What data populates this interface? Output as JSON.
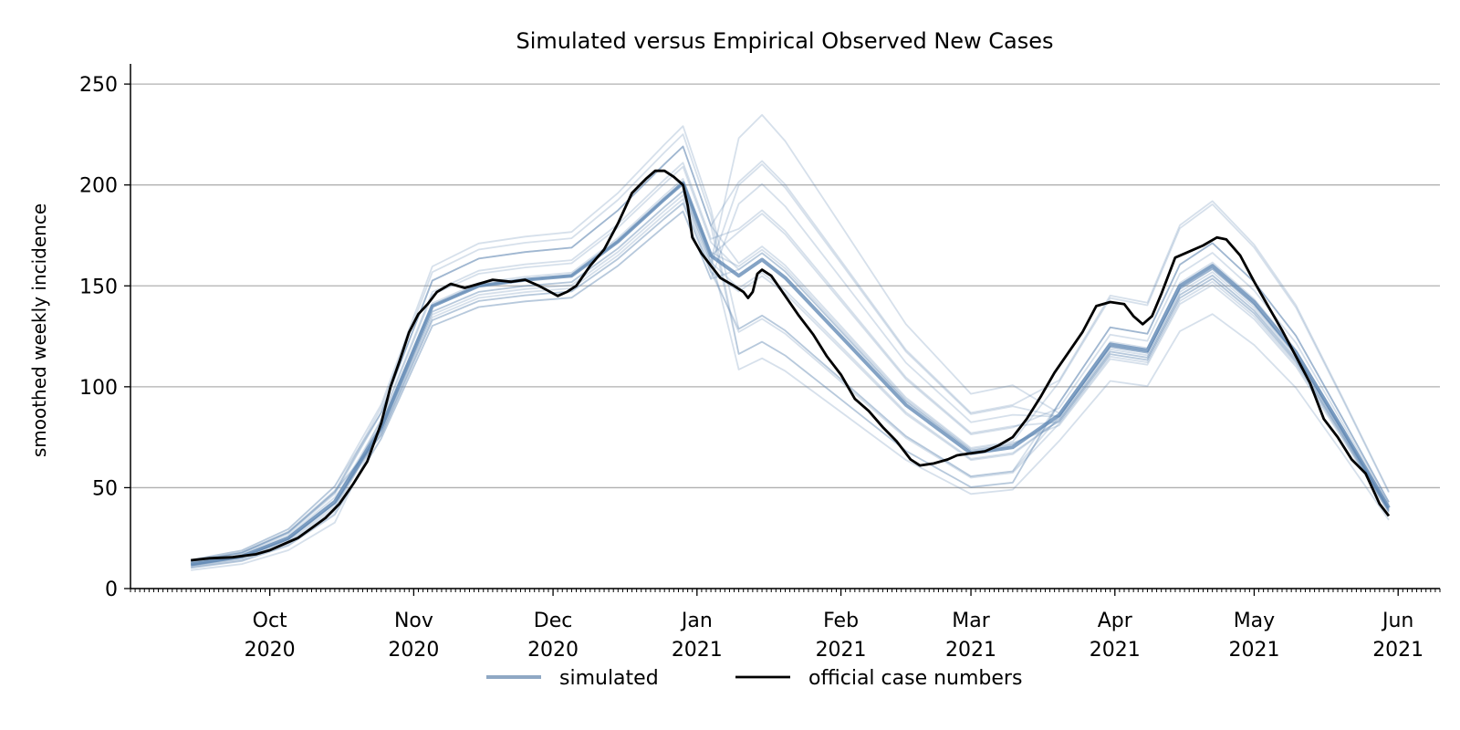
{
  "chart_data": {
    "type": "line",
    "title": "Simulated versus Empirical Observed New Cases",
    "xlabel": "",
    "ylabel": "smoothed weekly incidence",
    "ylim": [
      0,
      260
    ],
    "xlim": [
      "2020-09-01",
      "2021-06-10"
    ],
    "grid": "horizontal",
    "legend_position": "bottom-center",
    "y_ticks": [
      0,
      50,
      100,
      150,
      200,
      250
    ],
    "x_ticks": [
      {
        "date": "2020-10-01",
        "label_month": "Oct",
        "label_year": "2020"
      },
      {
        "date": "2020-11-01",
        "label_month": "Nov",
        "label_year": "2020"
      },
      {
        "date": "2020-12-01",
        "label_month": "Dec",
        "label_year": "2020"
      },
      {
        "date": "2021-01-01",
        "label_month": "Jan",
        "label_year": "2021"
      },
      {
        "date": "2021-02-01",
        "label_month": "Feb",
        "label_year": "2021"
      },
      {
        "date": "2021-03-01",
        "label_month": "Mar",
        "label_year": "2021"
      },
      {
        "date": "2021-04-01",
        "label_month": "Apr",
        "label_year": "2021"
      },
      {
        "date": "2021-05-01",
        "label_month": "May",
        "label_year": "2021"
      },
      {
        "date": "2021-06-01",
        "label_month": "Jun",
        "label_year": "2021"
      }
    ],
    "legend": [
      {
        "label": "simulated",
        "color": "#8fa8c4"
      },
      {
        "label": "official case numbers",
        "color": "#000000"
      }
    ],
    "colors": {
      "simulated": "#5b84b1",
      "official": "#000000",
      "grid": "#b0b0b0"
    },
    "series": [
      {
        "name": "official case numbers",
        "points": [
          [
            "2020-09-14",
            14
          ],
          [
            "2020-09-18",
            15
          ],
          [
            "2020-09-23",
            15.5
          ],
          [
            "2020-09-28",
            17
          ],
          [
            "2020-10-01",
            19
          ],
          [
            "2020-10-04",
            22
          ],
          [
            "2020-10-07",
            25
          ],
          [
            "2020-10-10",
            30
          ],
          [
            "2020-10-13",
            35
          ],
          [
            "2020-10-16",
            42
          ],
          [
            "2020-10-19",
            52
          ],
          [
            "2020-10-22",
            63
          ],
          [
            "2020-10-25",
            82
          ],
          [
            "2020-10-27",
            100
          ],
          [
            "2020-10-29",
            113
          ],
          [
            "2020-10-31",
            127
          ],
          [
            "2020-11-02",
            136
          ],
          [
            "2020-11-04",
            141
          ],
          [
            "2020-11-06",
            147
          ],
          [
            "2020-11-09",
            151
          ],
          [
            "2020-11-12",
            149
          ],
          [
            "2020-11-15",
            151
          ],
          [
            "2020-11-18",
            153
          ],
          [
            "2020-11-22",
            152
          ],
          [
            "2020-11-25",
            153
          ],
          [
            "2020-11-28",
            150
          ],
          [
            "2020-12-02",
            145
          ],
          [
            "2020-12-04",
            147
          ],
          [
            "2020-12-06",
            150
          ],
          [
            "2020-12-09",
            160
          ],
          [
            "2020-12-12",
            168
          ],
          [
            "2020-12-15",
            181
          ],
          [
            "2020-12-18",
            196
          ],
          [
            "2020-12-21",
            203
          ],
          [
            "2020-12-23",
            207
          ],
          [
            "2020-12-25",
            207
          ],
          [
            "2020-12-27",
            204
          ],
          [
            "2020-12-29",
            200
          ],
          [
            "2020-12-30",
            190
          ],
          [
            "2020-12-31",
            174
          ],
          [
            "2021-01-02",
            166
          ],
          [
            "2021-01-04",
            160
          ],
          [
            "2021-01-06",
            154
          ],
          [
            "2021-01-09",
            150
          ],
          [
            "2021-01-11",
            147
          ],
          [
            "2021-01-12",
            144
          ],
          [
            "2021-01-13",
            147
          ],
          [
            "2021-01-14",
            156
          ],
          [
            "2021-01-15",
            158
          ],
          [
            "2021-01-17",
            155
          ],
          [
            "2021-01-20",
            145
          ],
          [
            "2021-01-23",
            135
          ],
          [
            "2021-01-26",
            126
          ],
          [
            "2021-01-29",
            115
          ],
          [
            "2021-02-01",
            106
          ],
          [
            "2021-02-04",
            94
          ],
          [
            "2021-02-07",
            88
          ],
          [
            "2021-02-10",
            80
          ],
          [
            "2021-02-13",
            73
          ],
          [
            "2021-02-16",
            64
          ],
          [
            "2021-02-18",
            61
          ],
          [
            "2021-02-21",
            62
          ],
          [
            "2021-02-24",
            64
          ],
          [
            "2021-02-26",
            66
          ],
          [
            "2021-03-01",
            67
          ],
          [
            "2021-03-04",
            68
          ],
          [
            "2021-03-07",
            71
          ],
          [
            "2021-03-10",
            75
          ],
          [
            "2021-03-13",
            84
          ],
          [
            "2021-03-16",
            95
          ],
          [
            "2021-03-19",
            107
          ],
          [
            "2021-03-22",
            117
          ],
          [
            "2021-03-25",
            127
          ],
          [
            "2021-03-28",
            140
          ],
          [
            "2021-03-31",
            142
          ],
          [
            "2021-04-03",
            141
          ],
          [
            "2021-04-05",
            135
          ],
          [
            "2021-04-07",
            131
          ],
          [
            "2021-04-09",
            135
          ],
          [
            "2021-04-11",
            146
          ],
          [
            "2021-04-14",
            164
          ],
          [
            "2021-04-17",
            167
          ],
          [
            "2021-04-20",
            170
          ],
          [
            "2021-04-23",
            174
          ],
          [
            "2021-04-25",
            173
          ],
          [
            "2021-04-28",
            165
          ],
          [
            "2021-05-01",
            152
          ],
          [
            "2021-05-04",
            140
          ],
          [
            "2021-05-07",
            128
          ],
          [
            "2021-05-10",
            115
          ],
          [
            "2021-05-13",
            102
          ],
          [
            "2021-05-16",
            84
          ],
          [
            "2021-05-19",
            75
          ],
          [
            "2021-05-22",
            64
          ],
          [
            "2021-05-25",
            57
          ],
          [
            "2021-05-28",
            42
          ],
          [
            "2021-05-30",
            36
          ]
        ]
      },
      {
        "name": "",
        "points": [
          [
            "2020-09-14",
            12
          ],
          [
            "2020-09-25",
            16
          ],
          [
            "2020-10-05",
            25
          ],
          [
            "2020-10-15",
            43
          ],
          [
            "2020-10-25",
            80
          ],
          [
            "2020-11-05",
            140
          ],
          [
            "2020-11-15",
            150
          ],
          [
            "2020-11-25",
            153
          ],
          [
            "2020-12-05",
            155
          ],
          [
            "2020-12-15",
            172
          ],
          [
            "2020-12-25",
            193
          ],
          [
            "2020-12-29",
            201
          ],
          [
            "2021-01-04",
            165
          ],
          [
            "2021-01-10",
            155
          ],
          [
            "2021-01-15",
            163
          ],
          [
            "2021-01-20",
            154
          ],
          [
            "2021-02-01",
            125
          ],
          [
            "2021-02-15",
            91
          ],
          [
            "2021-03-01",
            67
          ],
          [
            "2021-03-10",
            70
          ],
          [
            "2021-03-20",
            86
          ],
          [
            "2021-03-31",
            121
          ],
          [
            "2021-04-08",
            118
          ],
          [
            "2021-04-15",
            150
          ],
          [
            "2021-04-22",
            160
          ],
          [
            "2021-05-01",
            142
          ],
          [
            "2021-05-10",
            117
          ],
          [
            "2021-05-20",
            79
          ],
          [
            "2021-05-30",
            40
          ]
        ]
      }
    ]
  }
}
